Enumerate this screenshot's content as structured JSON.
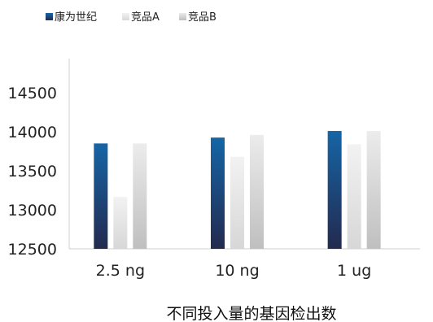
{
  "chart_data": {
    "type": "bar",
    "title": "",
    "xlabel": "不同投入量的基因检出数",
    "ylabel": "",
    "categories": [
      "2.5 ng",
      "10 ng",
      "1 ug"
    ],
    "series": [
      {
        "name": "康为世纪",
        "values": [
          13850,
          13925,
          14010
        ],
        "color_top": "#1565a6",
        "color_bottom": "#232a4f"
      },
      {
        "name": "竞品A",
        "values": [
          13165,
          13680,
          13840
        ],
        "color_top": "#f2f2f2",
        "color_bottom": "#d7d7d7"
      },
      {
        "name": "竞品B",
        "values": [
          13850,
          13960,
          14010
        ],
        "color_top": "#ececec",
        "color_bottom": "#bfbfbf"
      }
    ],
    "ylim": [
      12500,
      14500
    ],
    "yticks": [
      12500,
      13000,
      13500,
      14000,
      14500
    ],
    "grid": false,
    "legend_position": "top-left"
  }
}
